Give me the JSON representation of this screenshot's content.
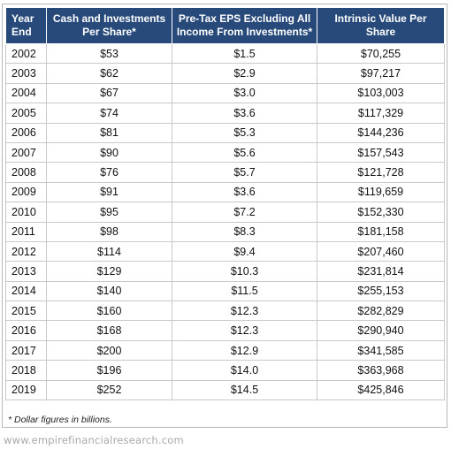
{
  "table": {
    "headers": {
      "year": [
        "Year",
        "End"
      ],
      "cash": [
        "Cash and Investments",
        "Per Share*"
      ],
      "eps": [
        "Pre-Tax EPS Excluding All",
        "Income From Investments*"
      ],
      "intrinsic": [
        "Intrinsic Value Per",
        "Share"
      ]
    },
    "rows": [
      [
        "2002",
        "$53",
        "$1.5",
        "$70,255"
      ],
      [
        "2003",
        "$62",
        "$2.9",
        "$97,217"
      ],
      [
        "2004",
        "$67",
        "$3.0",
        "$103,003"
      ],
      [
        "2005",
        "$74",
        "$3.6",
        "$117,329"
      ],
      [
        "2006",
        "$81",
        "$5.3",
        "$144,236"
      ],
      [
        "2007",
        "$90",
        "$5.6",
        "$157,543"
      ],
      [
        "2008",
        "$76",
        "$5.7",
        "$121,728"
      ],
      [
        "2009",
        "$91",
        "$3.6",
        "$119,659"
      ],
      [
        "2010",
        "$95",
        "$7.2",
        "$152,330"
      ],
      [
        "2011",
        "$98",
        "$8.3",
        "$181,158"
      ],
      [
        "2012",
        "$114",
        "$9.4",
        "$207,460"
      ],
      [
        "2013",
        "$129",
        "$10.3",
        "$231,814"
      ],
      [
        "2014",
        "$140",
        "$11.5",
        "$255,153"
      ],
      [
        "2015",
        "$160",
        "$12.3",
        "$282,829"
      ],
      [
        "2016",
        "$168",
        "$12.3",
        "$290,940"
      ],
      [
        "2017",
        "$200",
        "$12.9",
        "$341,585"
      ],
      [
        "2018",
        "$196",
        "$14.0",
        "$363,968"
      ],
      [
        "2019",
        "$252",
        "$14.5",
        "$425,846"
      ]
    ]
  },
  "footnote": "* Dollar figures in billions.",
  "watermark": "www.empirefinancialresearch.com",
  "colors": {
    "header_bg": "#274a7a",
    "header_text": "#ffffff",
    "grid": "#c9c9c9"
  }
}
